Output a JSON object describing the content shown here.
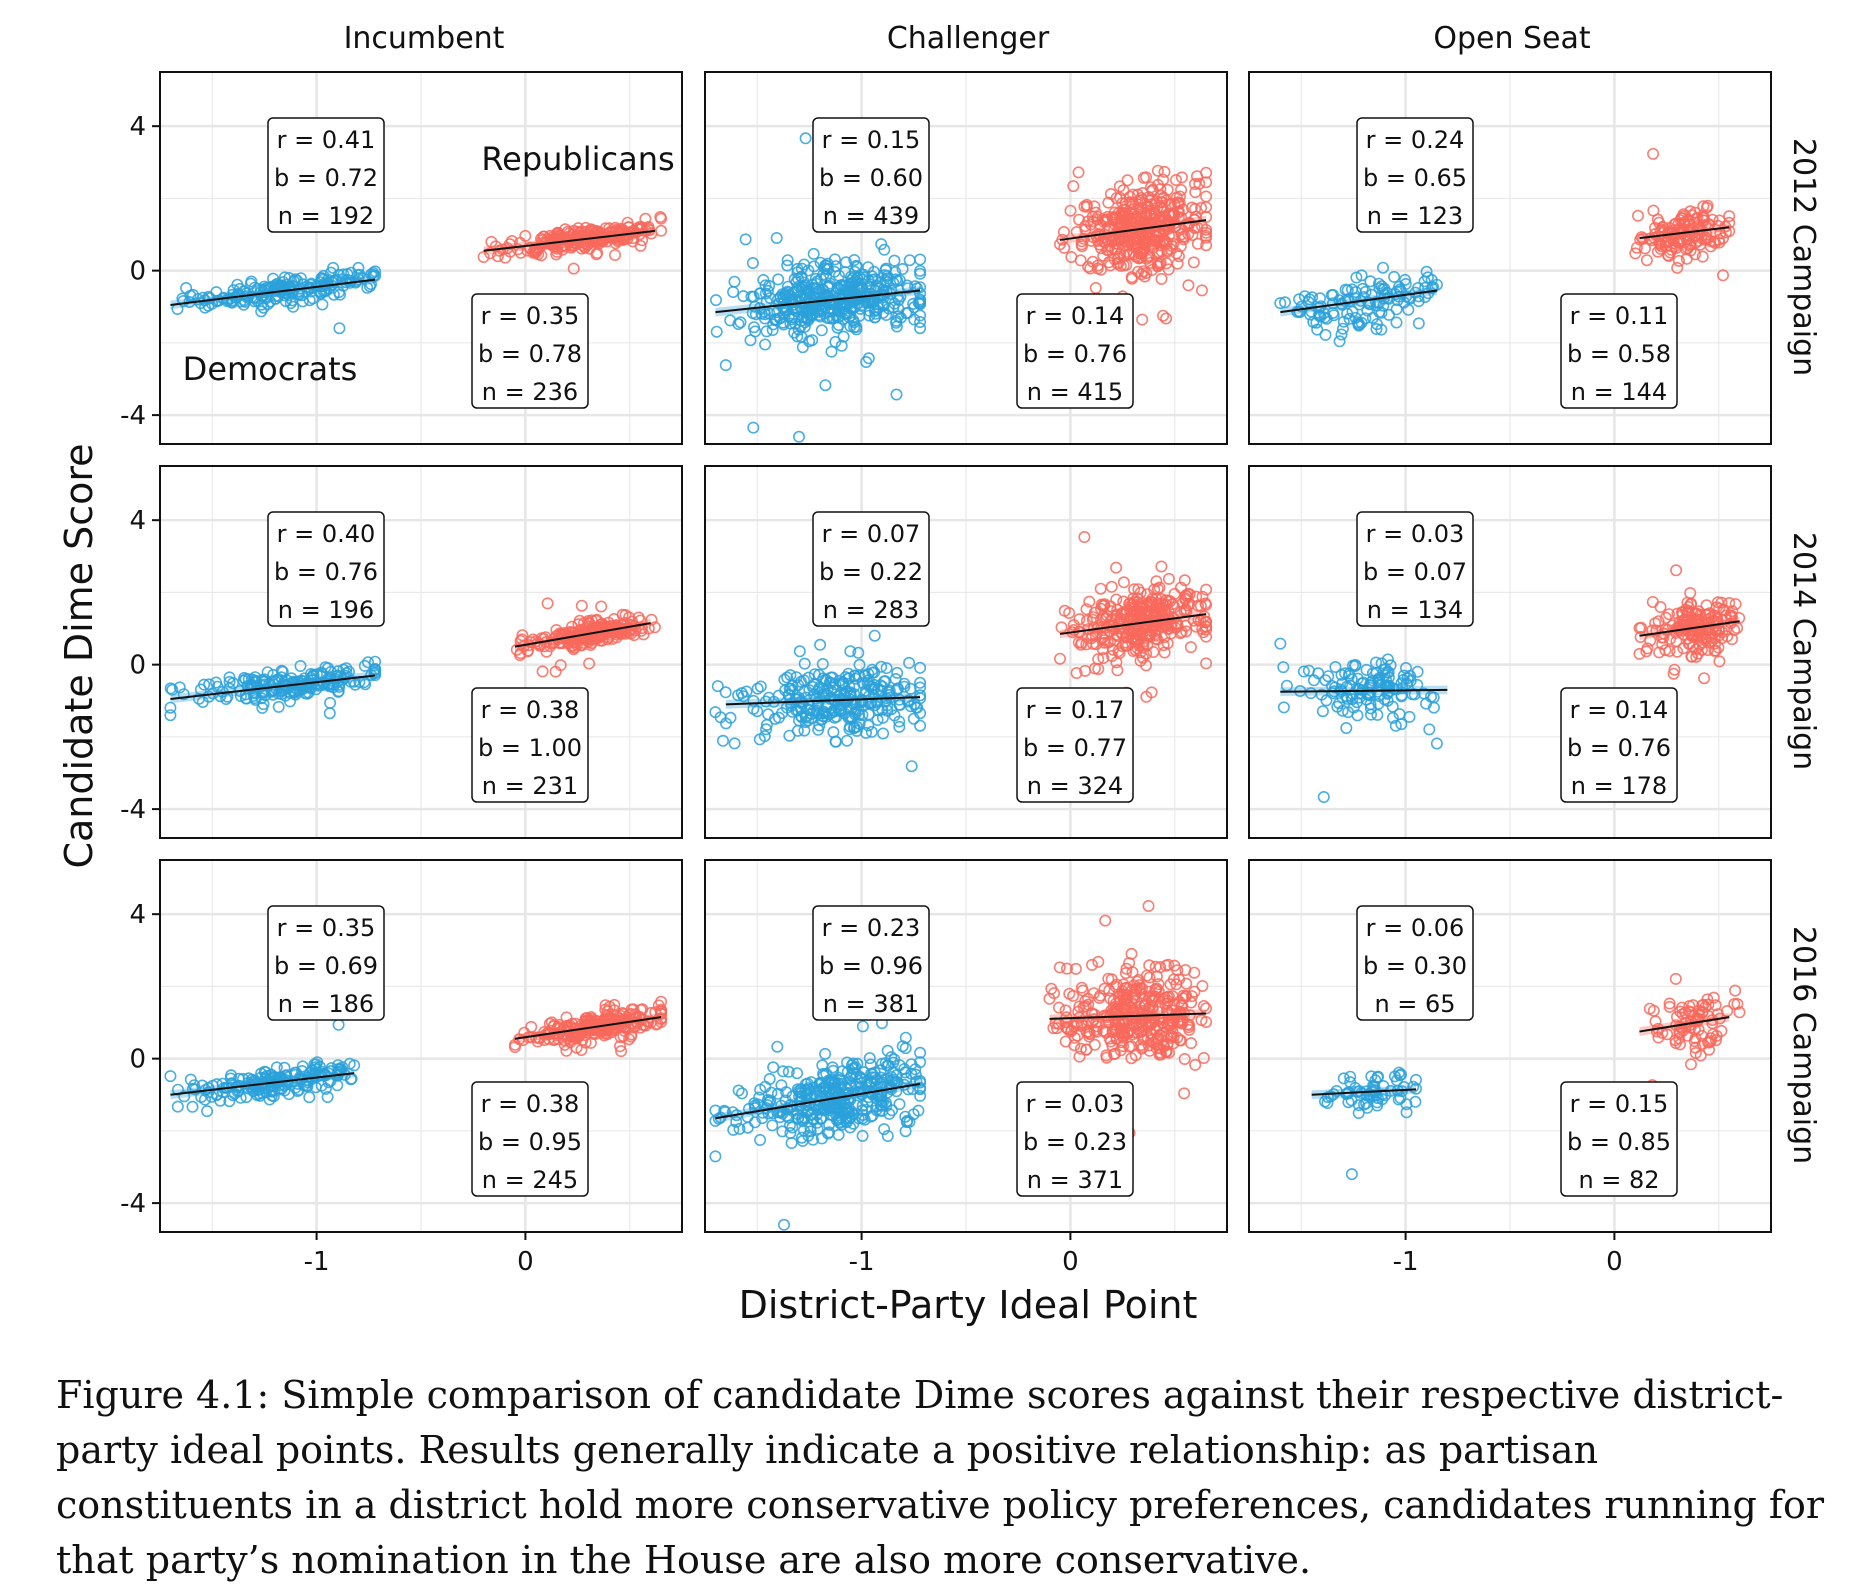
{
  "chart_data": {
    "type": "scatter",
    "xlabel": "District-Party Ideal Point",
    "ylabel": "Candidate Dime Score",
    "xlim": [
      -1.75,
      0.75
    ],
    "ylim": [
      -4.8,
      5.5
    ],
    "x_ticks": [
      -1,
      0
    ],
    "y_ticks": [
      4,
      0,
      -4
    ],
    "x_tick_labels": [
      "-1",
      "0"
    ],
    "y_tick_labels": [
      "4",
      "0",
      "-4"
    ],
    "grid": true,
    "columns": [
      "Incumbent",
      "Challenger",
      "Open Seat"
    ],
    "rows": [
      "2012 Campaign",
      "2014 Campaign",
      "2016 Campaign"
    ],
    "party_labels": {
      "democrats": "Democrats",
      "republicans": "Republicans"
    },
    "colors": {
      "democrats": "#2aa1db",
      "republicans": "#f8695c",
      "fit_line": "#111111",
      "grid": "#e6e6e6",
      "band_dem": "#9fd3ef",
      "band_rep": "#fbb7b0"
    },
    "panels": [
      {
        "row": 0,
        "col": 0,
        "dem": {
          "r": "r = 0.41",
          "b": "b = 0.72",
          "n": "n = 192",
          "count": 192,
          "xrange": [
            -1.7,
            -0.72
          ],
          "fit": [
            [
              -1.7,
              -0.95
            ],
            [
              -0.72,
              -0.25
            ]
          ],
          "yspread": 0.18
        },
        "rep": {
          "r": "r = 0.35",
          "b": "b = 0.78",
          "n": "n = 236",
          "count": 236,
          "xrange": [
            -0.2,
            0.65
          ],
          "fit": [
            [
              -0.2,
              0.55
            ],
            [
              0.62,
              1.1
            ]
          ],
          "yspread": 0.14
        }
      },
      {
        "row": 0,
        "col": 1,
        "dem": {
          "r": "r = 0.15",
          "b": "b = 0.60",
          "n": "n = 439",
          "count": 439,
          "xrange": [
            -1.7,
            -0.72
          ],
          "fit": [
            [
              -1.7,
              -1.15
            ],
            [
              -0.72,
              -0.55
            ]
          ],
          "yspread": 0.45
        },
        "rep": {
          "r": "r = 0.14",
          "b": "b = 0.76",
          "n": "n = 415",
          "count": 415,
          "xrange": [
            -0.05,
            0.65
          ],
          "fit": [
            [
              -0.05,
              0.85
            ],
            [
              0.65,
              1.4
            ]
          ],
          "yspread": 0.6
        }
      },
      {
        "row": 0,
        "col": 2,
        "dem": {
          "r": "r = 0.24",
          "b": "b = 0.65",
          "n": "n = 123",
          "count": 123,
          "xrange": [
            -1.6,
            -0.85
          ],
          "fit": [
            [
              -1.6,
              -1.15
            ],
            [
              -0.85,
              -0.55
            ]
          ],
          "yspread": 0.35
        },
        "rep": {
          "r": "r = 0.11",
          "b": "b = 0.58",
          "n": "n = 144",
          "count": 144,
          "xrange": [
            0.1,
            0.55
          ],
          "fit": [
            [
              0.12,
              0.9
            ],
            [
              0.55,
              1.2
            ]
          ],
          "yspread": 0.35
        }
      },
      {
        "row": 1,
        "col": 0,
        "dem": {
          "r": "r = 0.40",
          "b": "b = 0.76",
          "n": "n = 196",
          "count": 196,
          "xrange": [
            -1.7,
            -0.72
          ],
          "fit": [
            [
              -1.7,
              -0.95
            ],
            [
              -0.72,
              -0.3
            ]
          ],
          "yspread": 0.2
        },
        "rep": {
          "r": "r = 0.38",
          "b": "b = 1.00",
          "n": "n = 231",
          "count": 231,
          "xrange": [
            -0.05,
            0.62
          ],
          "fit": [
            [
              -0.05,
              0.5
            ],
            [
              0.6,
              1.15
            ]
          ],
          "yspread": 0.15
        }
      },
      {
        "row": 1,
        "col": 1,
        "dem": {
          "r": "r = 0.07",
          "b": "b = 0.22",
          "n": "n = 283",
          "count": 283,
          "xrange": [
            -1.7,
            -0.72
          ],
          "fit": [
            [
              -1.65,
              -1.1
            ],
            [
              -0.72,
              -0.9
            ]
          ],
          "yspread": 0.45
        },
        "rep": {
          "r": "r = 0.17",
          "b": "b = 0.77",
          "n": "n = 324",
          "count": 324,
          "xrange": [
            -0.05,
            0.65
          ],
          "fit": [
            [
              -0.05,
              0.85
            ],
            [
              0.65,
              1.4
            ]
          ],
          "yspread": 0.5
        }
      },
      {
        "row": 1,
        "col": 2,
        "dem": {
          "r": "r = 0.03",
          "b": "b = 0.07",
          "n": "n = 134",
          "count": 134,
          "xrange": [
            -1.6,
            -0.85
          ],
          "fit": [
            [
              -1.6,
              -0.75
            ],
            [
              -0.8,
              -0.7
            ]
          ],
          "yspread": 0.4
        },
        "rep": {
          "r": "r = 0.14",
          "b": "b = 0.76",
          "n": "n = 178",
          "count": 178,
          "xrange": [
            0.12,
            0.6
          ],
          "fit": [
            [
              0.12,
              0.8
            ],
            [
              0.6,
              1.2
            ]
          ],
          "yspread": 0.35
        }
      },
      {
        "row": 2,
        "col": 0,
        "dem": {
          "r": "r = 0.35",
          "b": "b = 0.69",
          "n": "n = 186",
          "count": 186,
          "xrange": [
            -1.7,
            -0.82
          ],
          "fit": [
            [
              -1.7,
              -1.0
            ],
            [
              -0.82,
              -0.4
            ]
          ],
          "yspread": 0.2
        },
        "rep": {
          "r": "r = 0.38",
          "b": "b = 0.95",
          "n": "n = 245",
          "count": 245,
          "xrange": [
            -0.05,
            0.65
          ],
          "fit": [
            [
              -0.05,
              0.55
            ],
            [
              0.65,
              1.15
            ]
          ],
          "yspread": 0.18
        }
      },
      {
        "row": 2,
        "col": 1,
        "dem": {
          "r": "r = 0.23",
          "b": "b = 0.96",
          "n": "n = 381",
          "count": 381,
          "xrange": [
            -1.7,
            -0.72
          ],
          "fit": [
            [
              -1.7,
              -1.65
            ],
            [
              -0.72,
              -0.7
            ]
          ],
          "yspread": 0.5
        },
        "rep": {
          "r": "r = 0.03",
          "b": "b = 0.23",
          "n": "n = 371",
          "count": 371,
          "xrange": [
            -0.1,
            0.65
          ],
          "fit": [
            [
              -0.1,
              1.1
            ],
            [
              0.65,
              1.25
            ]
          ],
          "yspread": 0.6
        }
      },
      {
        "row": 2,
        "col": 2,
        "dem": {
          "r": "r = 0.06",
          "b": "b = 0.30",
          "n": "n = 65",
          "count": 65,
          "xrange": [
            -1.45,
            -0.95
          ],
          "fit": [
            [
              -1.45,
              -1.0
            ],
            [
              -0.95,
              -0.85
            ]
          ],
          "yspread": 0.25
        },
        "rep": {
          "r": "r = 0.15",
          "b": "b = 0.85",
          "n": "n = 82",
          "count": 82,
          "xrange": [
            0.12,
            0.6
          ],
          "fit": [
            [
              0.12,
              0.75
            ],
            [
              0.55,
              1.15
            ]
          ],
          "yspread": 0.4
        }
      }
    ]
  },
  "caption": "Figure 4.1: Simple comparison of candidate Dime scores against their respective district-party ideal points. Results generally indicate a positive relationship: as partisan constituents in a district hold more conservative policy preferences, candidates running for that party’s nomination in the House are also more conservative."
}
